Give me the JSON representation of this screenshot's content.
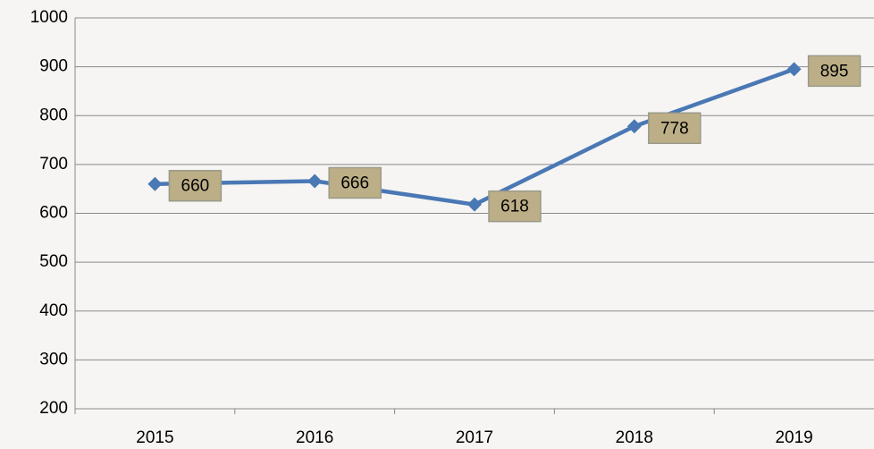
{
  "chart_data": {
    "type": "line",
    "categories": [
      "2015",
      "2016",
      "2017",
      "2018",
      "2019"
    ],
    "series": [
      {
        "color": "#4a78b5",
        "values": [
          660,
          666,
          618,
          778,
          895
        ]
      }
    ],
    "ylim": [
      200,
      1000
    ],
    "yticks": [
      200,
      300,
      400,
      500,
      600,
      700,
      800,
      900,
      1000
    ],
    "grid": true
  }
}
